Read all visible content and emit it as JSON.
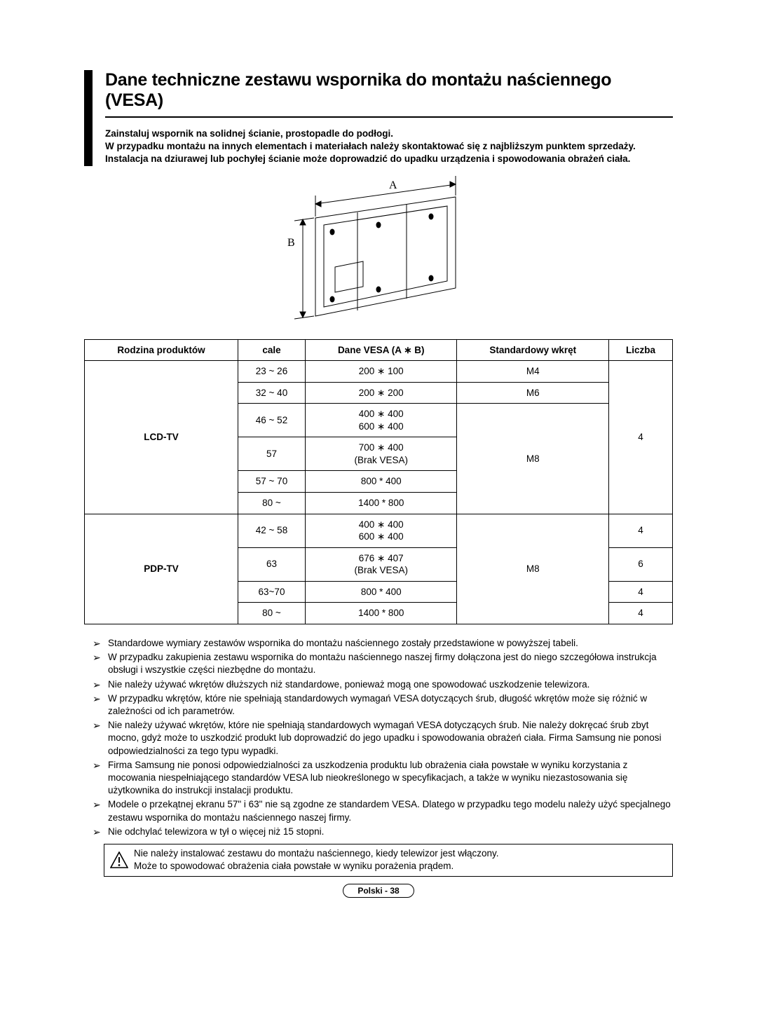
{
  "title": "Dane techniczne zestawu wspornika do montażu naściennego (VESA)",
  "intro": "Zainstaluj wspornik na solidnej ścianie, prostopadle do podłogi.\nW przypadku montażu na innych elementach i materiałach należy skontaktować się z najbliższym punktem sprzedaży. Instalacja na dziurawej lub pochyłej ścianie może doprowadzić do upadku urządzenia i spowodowania obrażeń ciała.",
  "diagram": {
    "label_a": "A",
    "label_b": "B"
  },
  "table": {
    "headers": {
      "family": "Rodzina produktów",
      "inches": "cale",
      "vesa": "Dane VESA (A ∗ B)",
      "screw": "Standardowy wkręt",
      "count": "Liczba"
    },
    "lcd": {
      "name": "LCD-TV",
      "rows": [
        {
          "inches": "23 ~ 26",
          "vesa": "200 ∗ 100",
          "screw": "M4"
        },
        {
          "inches": "32 ~ 40",
          "vesa": "200 ∗ 200",
          "screw": "M6"
        },
        {
          "inches": "46 ~ 52",
          "vesa": "400 ∗ 400\n600 ∗ 400"
        },
        {
          "inches": "57",
          "vesa": "700 ∗ 400\n(Brak VESA)"
        },
        {
          "inches": "57 ~ 70",
          "vesa": "800 * 400"
        },
        {
          "inches": "80 ~",
          "vesa": "1400 * 800"
        }
      ],
      "screw_m8": "M8",
      "count": "4"
    },
    "pdp": {
      "name": "PDP-TV",
      "rows": [
        {
          "inches": "42 ~ 58",
          "vesa": "400 ∗ 400\n600 ∗ 400",
          "count": "4"
        },
        {
          "inches": "63",
          "vesa": "676 ∗ 407\n(Brak VESA)",
          "count": "6"
        },
        {
          "inches": "63~70",
          "vesa": "800 * 400",
          "count": "4"
        },
        {
          "inches": "80 ~",
          "vesa": "1400 * 800",
          "count": "4"
        }
      ],
      "screw_m8": "M8"
    }
  },
  "notes": [
    "Standardowe wymiary zestawów wspornika do montażu naściennego zostały przedstawione w powyższej tabeli.",
    "W przypadku zakupienia zestawu wspornika do montażu naściennego naszej firmy dołączona jest do niego szczegółowa instrukcja obsługi i wszystkie części niezbędne do montażu.",
    "Nie należy używać wkrętów dłuższych niż standardowe, ponieważ mogą one spowodować uszkodzenie telewizora.",
    "W przypadku wkrętów, które nie spełniają standardowych wymagań VESA dotyczących śrub, długość wkrętów może się różnić w zależności od ich parametrów.",
    "Nie należy używać wkrętów, które nie spełniają standardowych wymagań VESA dotyczących śrub. Nie należy dokręcać śrub zbyt mocno, gdyż może to uszkodzić produkt lub doprowadzić do jego upadku i spowodowania obrażeń ciała. Firma Samsung nie ponosi odpowiedzialności za tego typu wypadki.",
    "Firma Samsung nie ponosi odpowiedzialności za uszkodzenia produktu lub obrażenia ciała powstałe w wyniku korzystania z mocowania niespełniającego standardów VESA lub nieokreślonego w specyfikacjach, a także w wyniku niezastosowania się użytkownika do instrukcji instalacji produktu.",
    "Modele o przekątnej ekranu 57\" i 63\" nie są zgodne ze standardem VESA. Dlatego w przypadku tego modelu należy użyć specjalnego zestawu wspornika do montażu naściennego naszej firmy.",
    "Nie odchylać telewizora w tył o więcej niż 15 stopni."
  ],
  "warning": "Nie należy instalować zestawu do montażu naściennego, kiedy telewizor jest włączony.\nMoże to spowodować obrażenia ciała powstałe w wyniku porażenia prądem.",
  "footer": "Polski - 38"
}
